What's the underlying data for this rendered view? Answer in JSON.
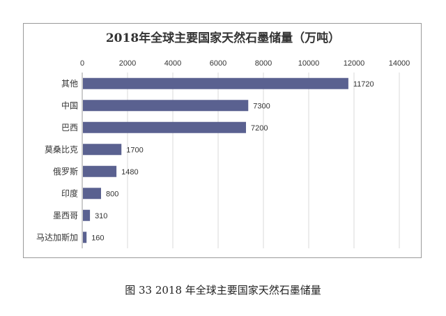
{
  "caption": "图 33 2018 年全球主要国家天然石墨储量",
  "chart_data": {
    "type": "bar",
    "orientation": "horizontal",
    "title": "2018年全球主要国家天然石墨储量（万吨）",
    "categories": [
      "其他",
      "中国",
      "巴西",
      "莫桑比克",
      "俄罗斯",
      "印度",
      "墨西哥",
      "马达加斯加"
    ],
    "values": [
      11720,
      7300,
      7200,
      1700,
      1480,
      800,
      310,
      160
    ],
    "xlim": [
      0,
      14000
    ],
    "xticks": [
      0,
      2000,
      4000,
      6000,
      8000,
      10000,
      12000,
      14000
    ],
    "x_axis_position": "top",
    "grid": true,
    "bar_color": "#5a6190",
    "data_labels": true
  }
}
